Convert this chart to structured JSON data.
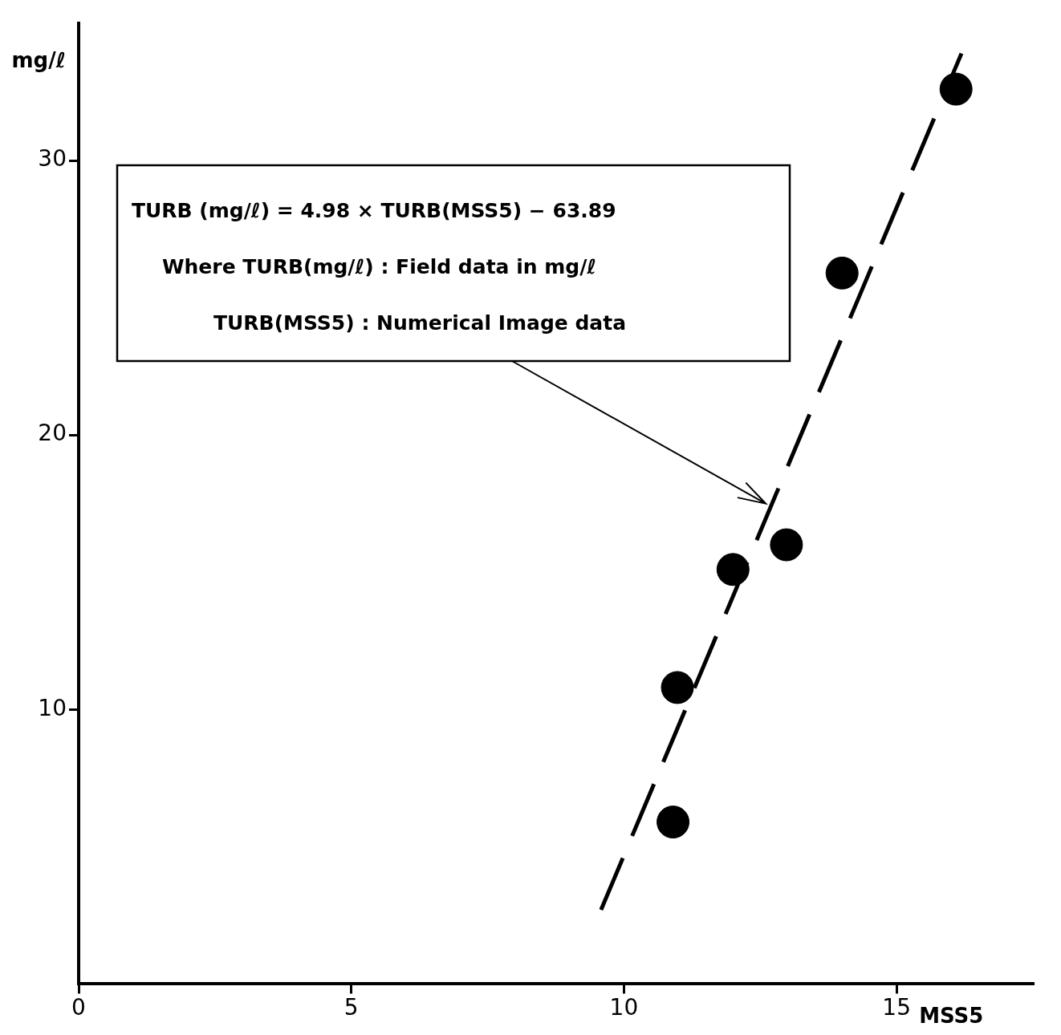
{
  "chart_data": {
    "type": "scatter",
    "xlabel": "MSS5",
    "ylabel": "mg/ℓ",
    "annotations": [
      "TURB (mg/ℓ) = 4.98 × TURB(MSS5) − 63.89",
      "Where TURB(mg/ℓ) : Field data in mg/ℓ",
      "TURB(MSS5) : Numerical Image data"
    ],
    "series": [
      {
        "type": "scatter",
        "color": "#000000",
        "marker": "circle",
        "x": [
          10.9,
          10.98,
          12.0,
          12.98,
          14.0,
          16.09
        ],
        "values": [
          5.9,
          10.8,
          15.1,
          16.0,
          25.9,
          32.6
        ]
      },
      {
        "type": "line",
        "color": "#000000",
        "line_style": "dashed",
        "marker": "none",
        "x": [
          9.58,
          16.19
        ],
        "values": [
          2.7,
          33.9
        ]
      }
    ],
    "xlim": [
      0,
      17.5
    ],
    "ylim": [
      0,
      35
    ],
    "xticks": [
      0,
      5,
      10,
      15
    ],
    "yticks": [
      10,
      20,
      30
    ],
    "grid": false,
    "legend": false
  }
}
